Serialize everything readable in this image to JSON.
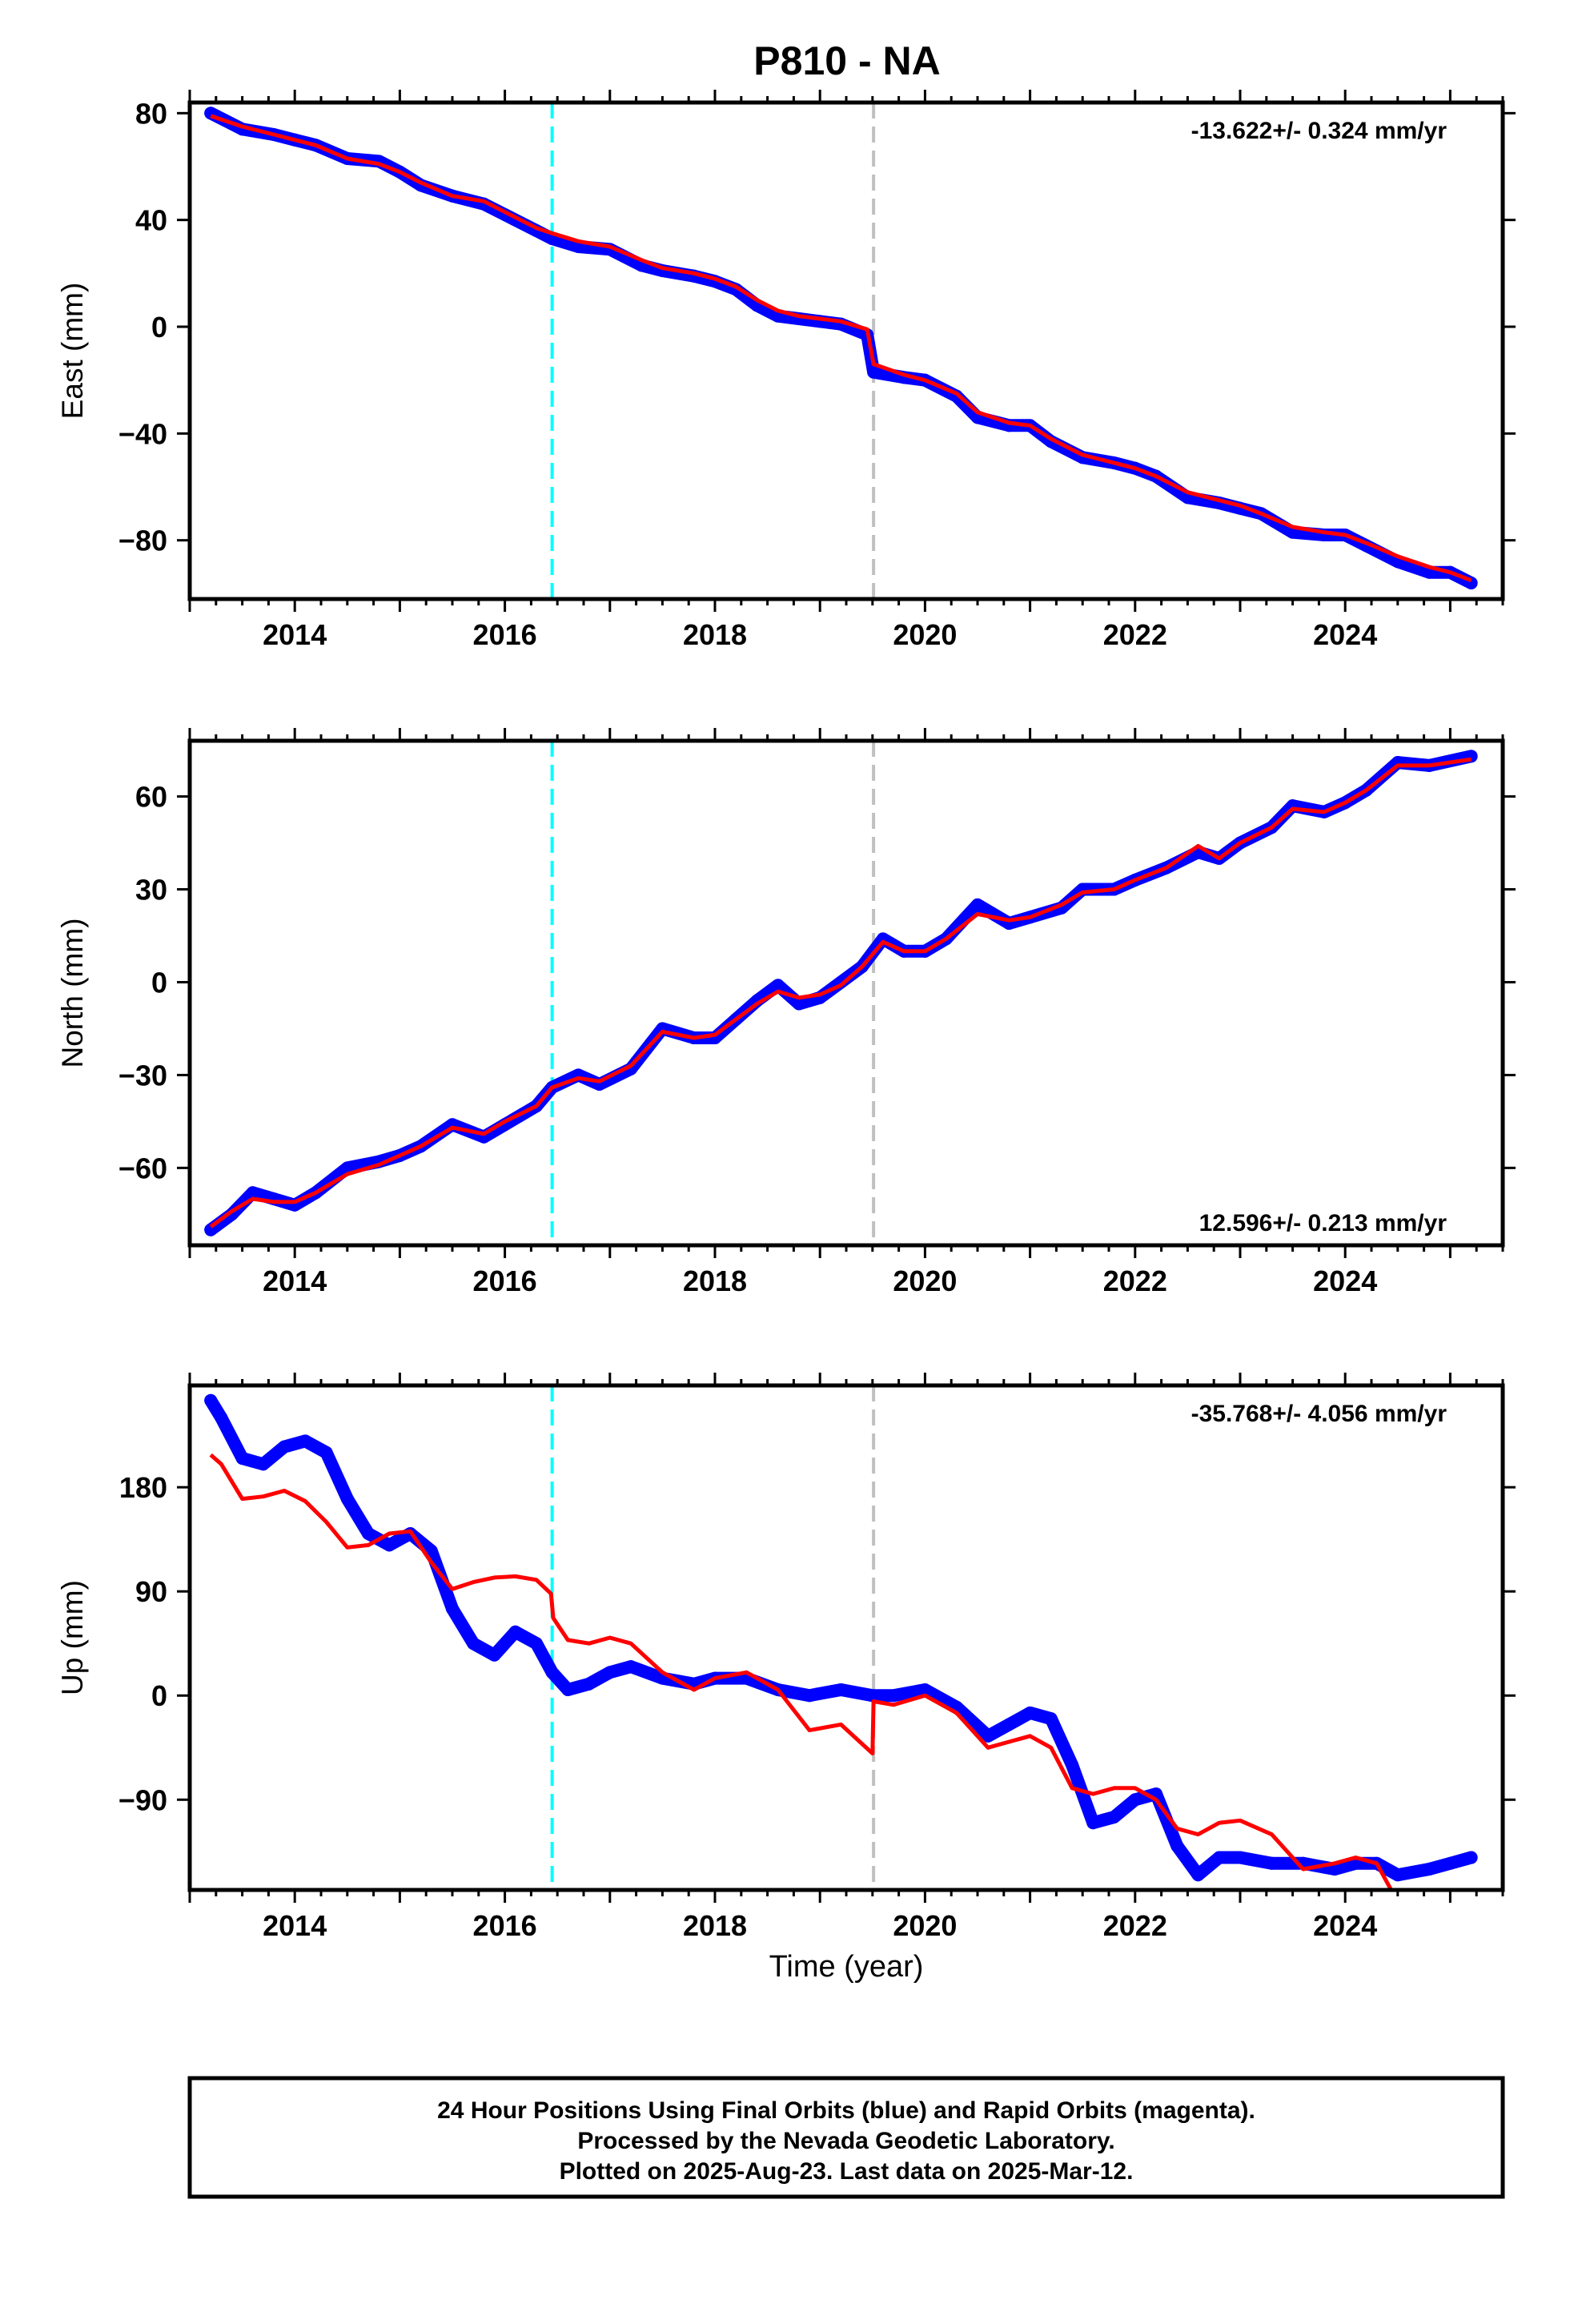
{
  "title": "P810 - NA",
  "colors": {
    "final_orbits": "#0000ff",
    "model": "#ff0000",
    "event_1": "#00ffff",
    "event_2": "#c0c0c0"
  },
  "event_lines": [
    2016.45,
    2019.51
  ],
  "x_axis": {
    "range": [
      2013.0,
      2025.5
    ],
    "ticks": [
      2014,
      2016,
      2018,
      2020,
      2022,
      2024
    ],
    "tick_labels": [
      "2014",
      "2016",
      "2018",
      "2020",
      "2022",
      "2024"
    ],
    "label": "Time (year)"
  },
  "chart_data": [
    {
      "type": "scatter",
      "panel": "east",
      "ylabel": "East (mm)",
      "ylim": [
        -102,
        84
      ],
      "yticks": [
        80,
        40,
        0,
        -40,
        -80
      ],
      "ytick_labels": [
        "80",
        "40",
        "0",
        "−40",
        "−80"
      ],
      "rate": "-13.622+/- 0.324 mm/yr",
      "rate_position": "top-right",
      "series": [
        {
          "type": "scatter",
          "x": [
            2013.2,
            2013.5,
            2013.8,
            2014.0,
            2014.2,
            2014.5,
            2014.8,
            2015.0,
            2015.2,
            2015.5,
            2015.8,
            2016.0,
            2016.3,
            2016.45,
            2016.7,
            2017.0,
            2017.3,
            2017.5,
            2017.8,
            2018.0,
            2018.2,
            2018.4,
            2018.6,
            2018.8,
            2019.0,
            2019.2,
            2019.45,
            2019.51,
            2019.8,
            2020.0,
            2020.3,
            2020.5,
            2020.8,
            2021.0,
            2021.2,
            2021.5,
            2021.8,
            2022.0,
            2022.2,
            2022.5,
            2022.8,
            2023.0,
            2023.2,
            2023.5,
            2023.8,
            2024.0,
            2024.2,
            2024.5,
            2024.8,
            2025.0,
            2025.2
          ],
          "y": [
            80,
            74,
            72,
            70,
            68,
            63,
            62,
            58,
            53,
            49,
            46,
            42,
            36,
            33,
            30,
            29,
            23,
            21,
            19,
            17,
            14,
            8,
            4,
            3,
            2,
            1,
            -3,
            -17,
            -19,
            -20,
            -26,
            -34,
            -37,
            -37,
            -43,
            -49,
            -51,
            -53,
            -56,
            -64,
            -66,
            -68,
            -70,
            -77,
            -78,
            -78,
            -82,
            -88,
            -92,
            -92,
            -96
          ]
        },
        {
          "type": "line",
          "x": [
            2013.2,
            2013.5,
            2013.8,
            2014.0,
            2014.2,
            2014.5,
            2014.8,
            2015.0,
            2015.2,
            2015.5,
            2015.8,
            2016.0,
            2016.3,
            2016.45,
            2016.7,
            2017.0,
            2017.3,
            2017.5,
            2017.8,
            2018.0,
            2018.2,
            2018.4,
            2018.6,
            2018.8,
            2019.0,
            2019.2,
            2019.45,
            2019.51,
            2019.8,
            2020.0,
            2020.3,
            2020.5,
            2020.8,
            2021.0,
            2021.2,
            2021.5,
            2021.8,
            2022.0,
            2022.2,
            2022.5,
            2022.8,
            2023.0,
            2023.2,
            2023.5,
            2023.8,
            2024.0,
            2024.2,
            2024.5,
            2024.8,
            2025.0,
            2025.2
          ],
          "y": [
            79,
            75,
            72,
            70,
            68,
            63,
            61,
            58,
            54,
            49,
            47,
            43,
            37,
            35,
            32,
            30,
            25,
            22,
            20,
            18,
            15,
            10,
            6,
            4,
            3,
            2,
            -1,
            -14,
            -18,
            -20,
            -25,
            -32,
            -36,
            -37,
            -42,
            -48,
            -51,
            -53,
            -56,
            -62,
            -65,
            -67,
            -70,
            -75,
            -77,
            -78,
            -81,
            -86,
            -90,
            -92,
            -95
          ]
        }
      ]
    },
    {
      "type": "scatter",
      "panel": "north",
      "ylabel": "North (mm)",
      "ylim": [
        -85,
        78
      ],
      "yticks": [
        60,
        30,
        0,
        -30,
        -60
      ],
      "ytick_labels": [
        "60",
        "30",
        "0",
        "−30",
        "−60"
      ],
      "rate": "12.596+/- 0.213 mm/yr",
      "rate_position": "bottom-right",
      "series": [
        {
          "type": "scatter",
          "x": [
            2013.2,
            2013.4,
            2013.6,
            2013.8,
            2014.0,
            2014.2,
            2014.5,
            2014.8,
            2015.0,
            2015.2,
            2015.5,
            2015.8,
            2016.0,
            2016.3,
            2016.45,
            2016.7,
            2016.9,
            2017.2,
            2017.5,
            2017.8,
            2018.0,
            2018.2,
            2018.4,
            2018.6,
            2018.8,
            2019.0,
            2019.2,
            2019.4,
            2019.6,
            2019.8,
            2020.0,
            2020.2,
            2020.5,
            2020.8,
            2021.0,
            2021.3,
            2021.5,
            2021.8,
            2022.0,
            2022.3,
            2022.6,
            2022.8,
            2023.0,
            2023.3,
            2023.5,
            2023.8,
            2024.0,
            2024.2,
            2024.5,
            2024.8,
            2025.2
          ],
          "y": [
            -80,
            -75,
            -68,
            -70,
            -72,
            -68,
            -60,
            -58,
            -56,
            -53,
            -46,
            -50,
            -46,
            -40,
            -34,
            -30,
            -33,
            -28,
            -15,
            -18,
            -18,
            -12,
            -6,
            -1,
            -7,
            -5,
            0,
            5,
            14,
            10,
            10,
            14,
            25,
            19,
            21,
            24,
            30,
            30,
            33,
            37,
            42,
            40,
            45,
            50,
            57,
            55,
            58,
            62,
            71,
            70,
            73
          ]
        },
        {
          "type": "line",
          "x": [
            2013.2,
            2013.4,
            2013.6,
            2013.8,
            2014.0,
            2014.2,
            2014.5,
            2014.8,
            2015.0,
            2015.2,
            2015.5,
            2015.8,
            2016.0,
            2016.3,
            2016.45,
            2016.7,
            2016.9,
            2017.2,
            2017.5,
            2017.8,
            2018.0,
            2018.2,
            2018.4,
            2018.6,
            2018.8,
            2019.0,
            2019.2,
            2019.4,
            2019.6,
            2019.8,
            2020.0,
            2020.2,
            2020.5,
            2020.8,
            2021.0,
            2021.3,
            2021.5,
            2021.8,
            2022.0,
            2022.3,
            2022.6,
            2022.8,
            2023.0,
            2023.3,
            2023.5,
            2023.8,
            2024.0,
            2024.2,
            2024.5,
            2024.8,
            2025.2
          ],
          "y": [
            -79,
            -74,
            -70,
            -71,
            -71,
            -68,
            -62,
            -59,
            -56,
            -53,
            -47,
            -49,
            -45,
            -40,
            -34,
            -31,
            -32,
            -27,
            -16,
            -18,
            -17,
            -12,
            -7,
            -3,
            -5,
            -4,
            -1,
            5,
            13,
            10,
            10,
            14,
            22,
            20,
            21,
            25,
            29,
            30,
            33,
            37,
            44,
            40,
            45,
            50,
            56,
            55,
            58,
            62,
            70,
            70,
            72
          ]
        }
      ]
    },
    {
      "type": "scatter",
      "panel": "up",
      "ylabel": "Up (mm)",
      "ylim": [
        -168,
        268
      ],
      "yticks": [
        180,
        90,
        0,
        -90
      ],
      "ytick_labels": [
        "180",
        "90",
        "0",
        "−90"
      ],
      "rate": "-35.768+/- 4.056 mm/yr",
      "rate_position": "top-right",
      "series": [
        {
          "type": "scatter",
          "x": [
            2013.2,
            2013.3,
            2013.5,
            2013.7,
            2013.9,
            2014.1,
            2014.3,
            2014.5,
            2014.7,
            2014.9,
            2015.1,
            2015.3,
            2015.5,
            2015.7,
            2015.9,
            2016.1,
            2016.3,
            2016.45,
            2016.6,
            2016.8,
            2017.0,
            2017.2,
            2017.5,
            2017.8,
            2018.0,
            2018.3,
            2018.6,
            2018.9,
            2019.2,
            2019.5,
            2019.7,
            2020.0,
            2020.3,
            2020.6,
            2020.8,
            2021.0,
            2021.2,
            2021.4,
            2021.6,
            2021.8,
            2022.0,
            2022.2,
            2022.4,
            2022.6,
            2022.8,
            2023.0,
            2023.3,
            2023.6,
            2023.9,
            2024.1,
            2024.3,
            2024.5,
            2024.8,
            2025.0,
            2025.2
          ],
          "y": [
            255,
            240,
            205,
            200,
            215,
            220,
            210,
            170,
            140,
            130,
            140,
            125,
            75,
            45,
            35,
            55,
            45,
            20,
            5,
            10,
            20,
            25,
            15,
            10,
            15,
            15,
            5,
            0,
            5,
            0,
            0,
            5,
            -10,
            -35,
            -25,
            -15,
            -20,
            -60,
            -110,
            -105,
            -90,
            -85,
            -130,
            -155,
            -140,
            -140,
            -145,
            -145,
            -150,
            -145,
            -145,
            -155,
            -150,
            -145,
            -140
          ]
        },
        {
          "type": "line",
          "x": [
            2013.2,
            2013.3,
            2013.5,
            2013.7,
            2013.9,
            2014.1,
            2014.3,
            2014.5,
            2014.7,
            2014.9,
            2015.1,
            2015.3,
            2015.5,
            2015.7,
            2015.9,
            2016.1,
            2016.3,
            2016.44,
            2016.46,
            2016.6,
            2016.8,
            2017.0,
            2017.2,
            2017.5,
            2017.8,
            2018.0,
            2018.3,
            2018.6,
            2018.9,
            2019.2,
            2019.5,
            2019.51,
            2019.7,
            2020.0,
            2020.3,
            2020.6,
            2020.8,
            2021.0,
            2021.2,
            2021.4,
            2021.6,
            2021.8,
            2022.0,
            2022.2,
            2022.4,
            2022.6,
            2022.8,
            2023.0,
            2023.3,
            2023.6,
            2023.9,
            2024.1,
            2024.3,
            2024.45
          ],
          "y": [
            208,
            200,
            170,
            172,
            177,
            168,
            150,
            128,
            130,
            140,
            142,
            115,
            92,
            98,
            102,
            103,
            100,
            88,
            67,
            48,
            45,
            50,
            45,
            20,
            5,
            15,
            20,
            5,
            -30,
            -25,
            -50,
            -5,
            -8,
            0,
            -15,
            -45,
            -40,
            -35,
            -45,
            -80,
            -85,
            -80,
            -80,
            -90,
            -115,
            -120,
            -110,
            -108,
            -120,
            -150,
            -145,
            -140,
            -145,
            -170
          ]
        }
      ]
    }
  ],
  "footer": {
    "line1": "24 Hour Positions Using Final Orbits (blue) and Rapid Orbits (magenta).",
    "line2": "Processed by the Nevada Geodetic Laboratory.",
    "line3": "Plotted on 2025-Aug-23. Last data on 2025-Mar-12."
  }
}
